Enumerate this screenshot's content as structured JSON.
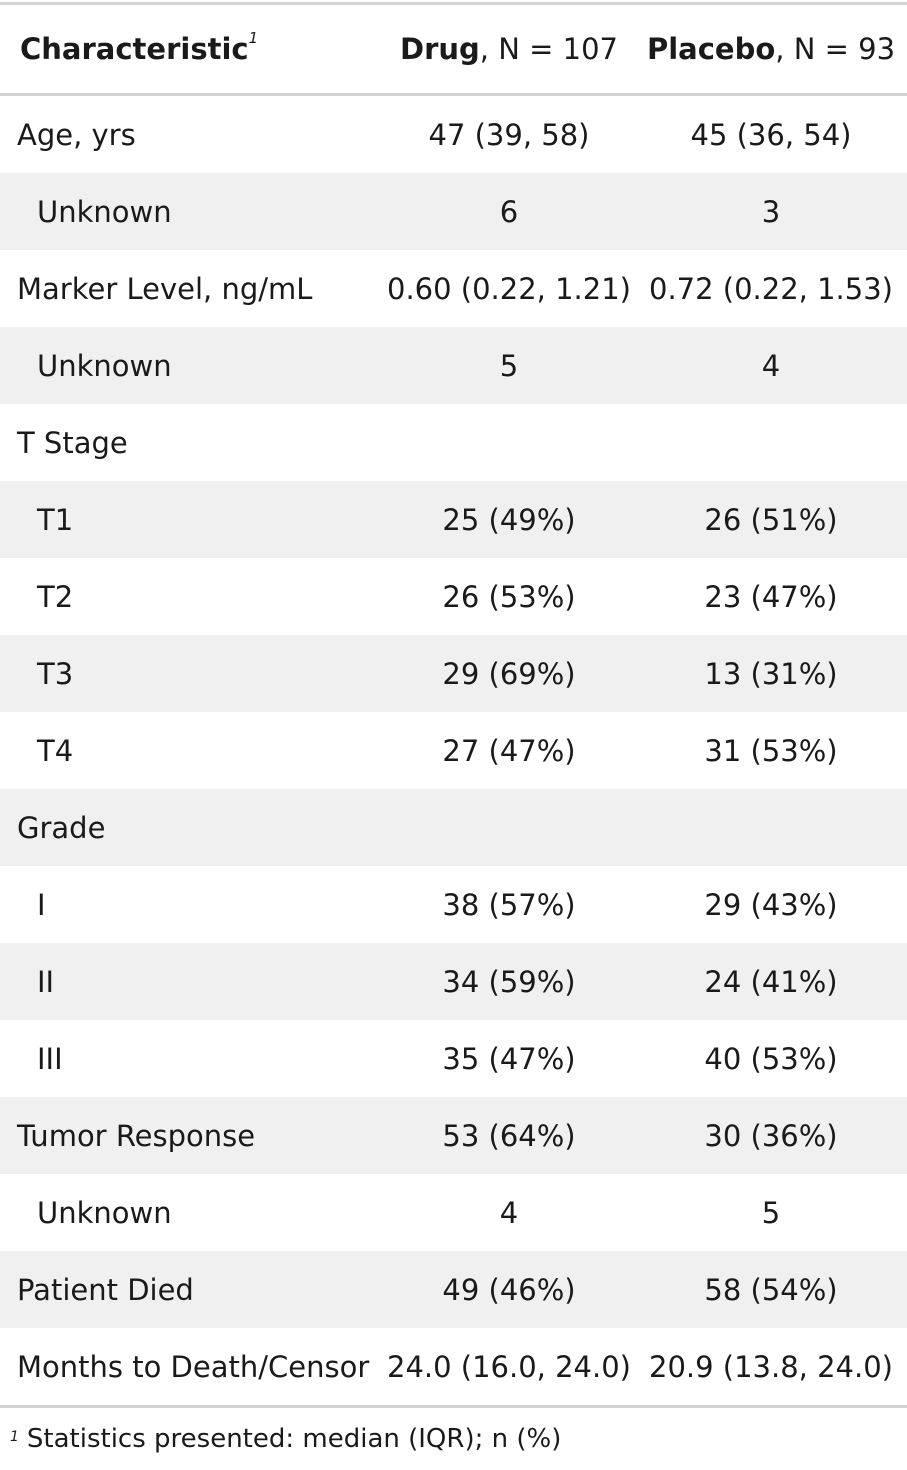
{
  "header": {
    "characteristic": "Characteristic",
    "footnote_marker": "1",
    "drug_name": "Drug",
    "drug_n": ", N = 107",
    "placebo_name": "Placebo",
    "placebo_n": ", N = 93"
  },
  "rows": [
    {
      "label": "Age, yrs",
      "drug": "47 (39, 58)",
      "placebo": "45 (36, 54)"
    },
    {
      "label": "Unknown",
      "drug": "6",
      "placebo": "3"
    },
    {
      "label": "Marker Level, ng/mL",
      "drug": "0.60 (0.22, 1.21)",
      "placebo": "0.72 (0.22, 1.53)"
    },
    {
      "label": "Unknown",
      "drug": "5",
      "placebo": "4"
    },
    {
      "label": "T Stage",
      "drug": "",
      "placebo": ""
    },
    {
      "label": "T1",
      "drug": "25 (49%)",
      "placebo": "26 (51%)"
    },
    {
      "label": "T2",
      "drug": "26 (53%)",
      "placebo": "23 (47%)"
    },
    {
      "label": "T3",
      "drug": "29 (69%)",
      "placebo": "13 (31%)"
    },
    {
      "label": "T4",
      "drug": "27 (47%)",
      "placebo": "31 (53%)"
    },
    {
      "label": "Grade",
      "drug": "",
      "placebo": ""
    },
    {
      "label": "I",
      "drug": "38 (57%)",
      "placebo": "29 (43%)"
    },
    {
      "label": "II",
      "drug": "34 (59%)",
      "placebo": "24 (41%)"
    },
    {
      "label": "III",
      "drug": "35 (47%)",
      "placebo": "40 (53%)"
    },
    {
      "label": "Tumor Response",
      "drug": "53 (64%)",
      "placebo": "30 (36%)"
    },
    {
      "label": "Unknown",
      "drug": "4",
      "placebo": "5"
    },
    {
      "label": "Patient Died",
      "drug": "49 (46%)",
      "placebo": "58 (54%)"
    },
    {
      "label": "Months to Death/Censor",
      "drug": "24.0 (16.0, 24.0)",
      "placebo": "20.9 (13.8, 24.0)"
    }
  ],
  "footnote": {
    "marker": "1",
    "text": "Statistics presented: median (IQR); n (%)"
  },
  "colors": {
    "rule": "#d3d3d3",
    "stripe": "#f0f0f0"
  }
}
